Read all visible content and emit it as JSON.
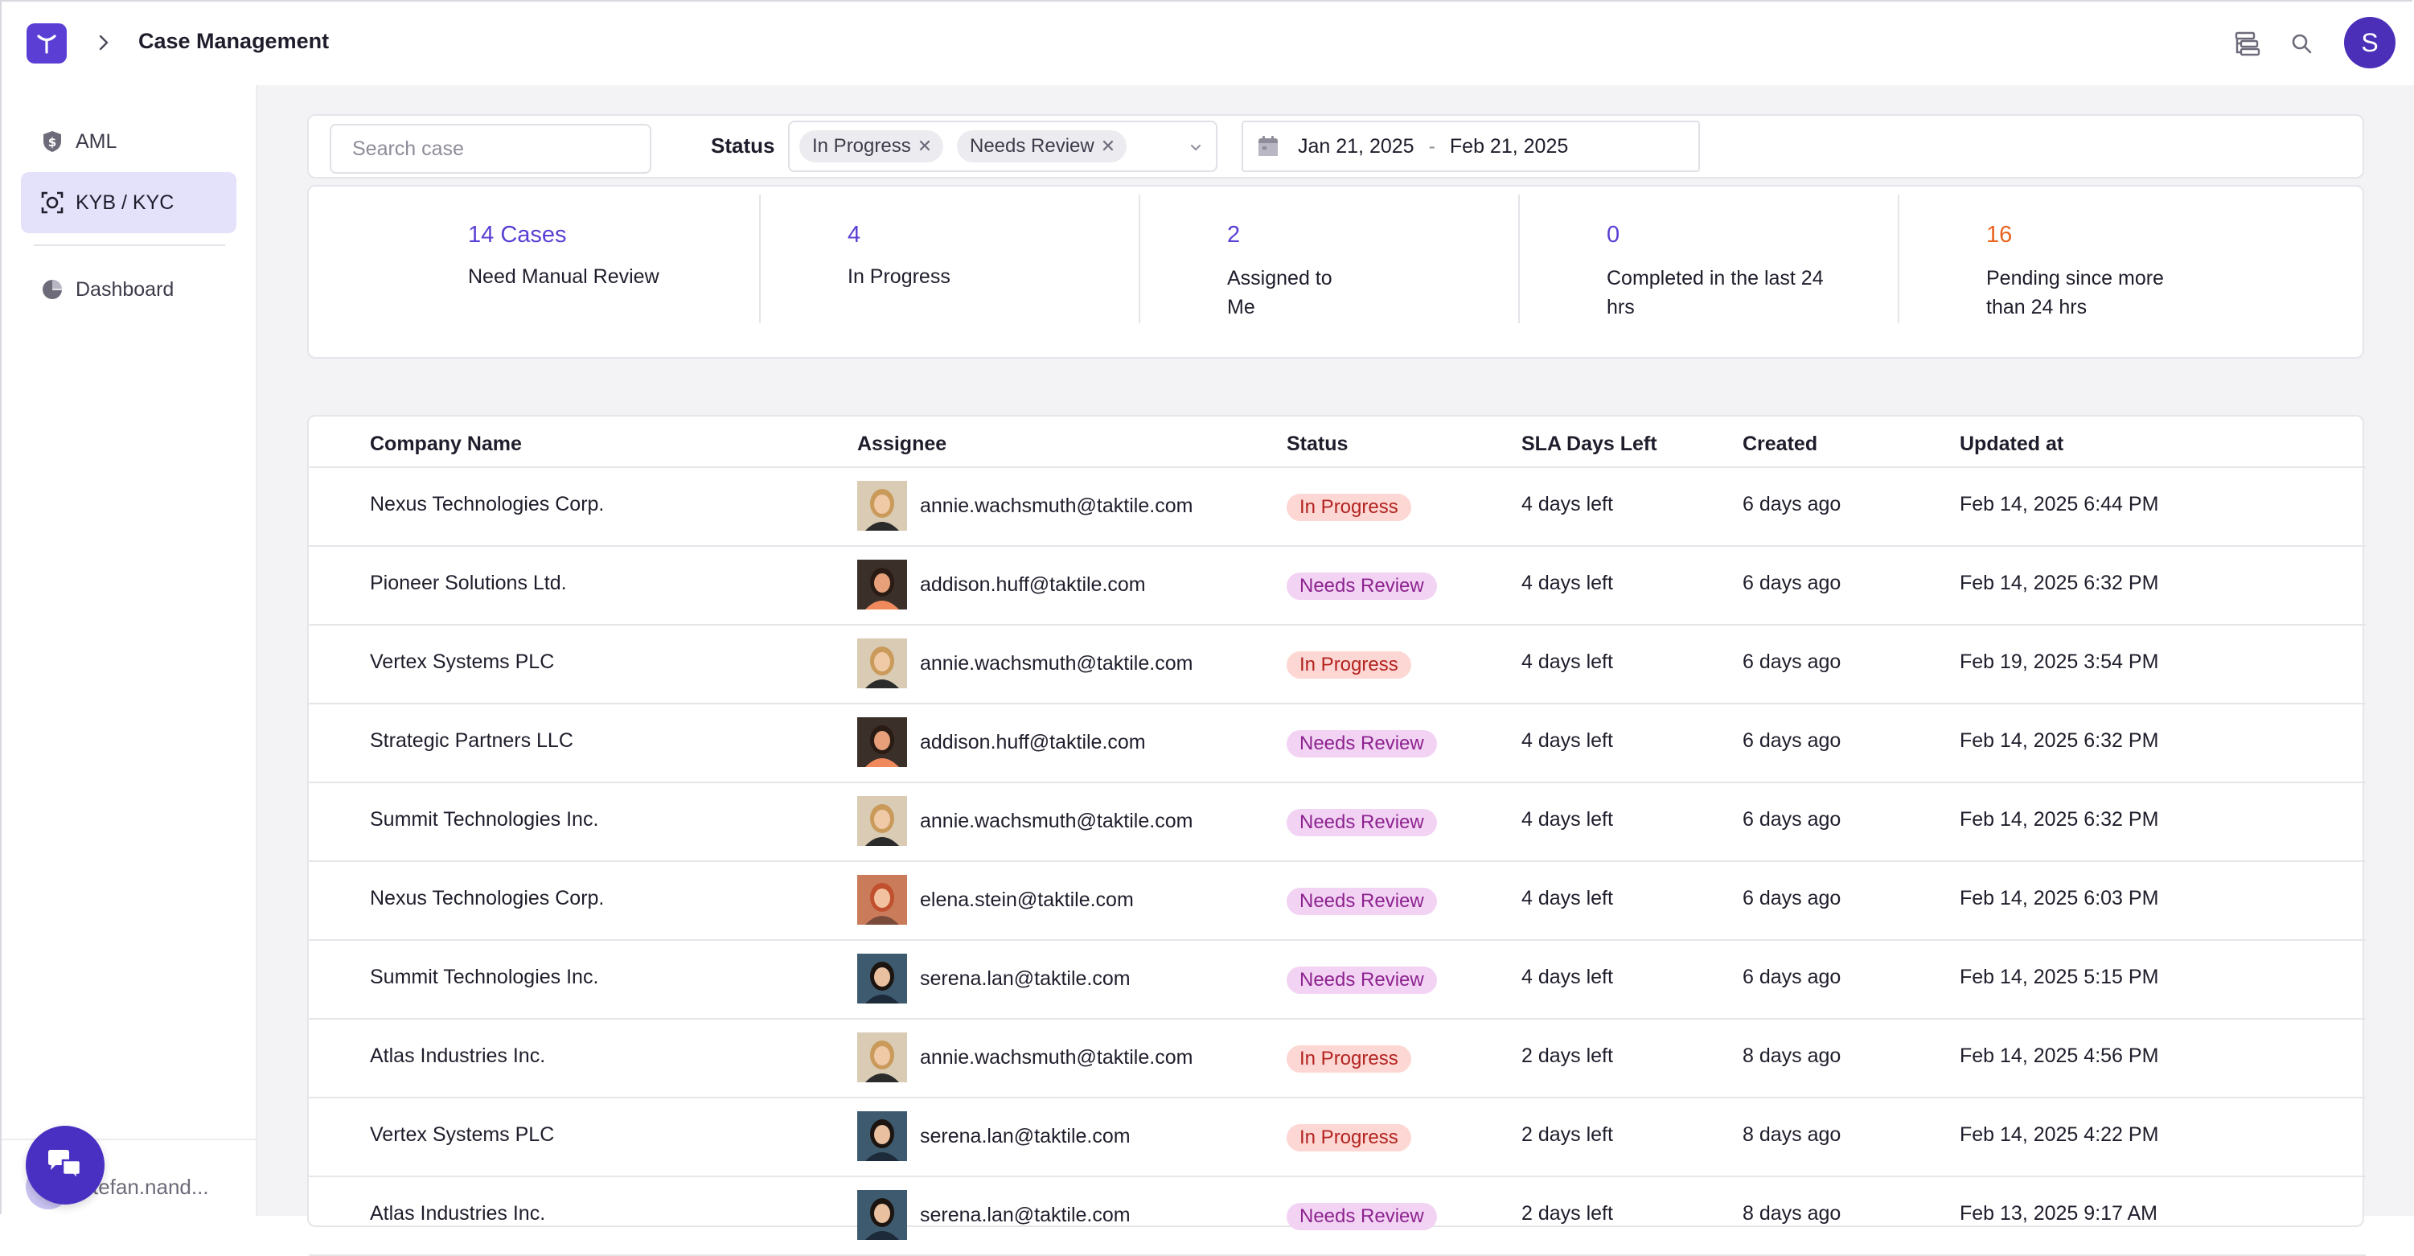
{
  "header": {
    "title": "Case Management",
    "user_initial": "S",
    "icons": [
      "logo-icon",
      "chevron-right-icon",
      "layout-icon",
      "search-icon"
    ]
  },
  "sidebar": {
    "items": [
      {
        "label": "AML",
        "icon": "shield-dollar-icon",
        "active": false
      },
      {
        "label": "KYB / KYC",
        "icon": "face-scan-icon",
        "active": true
      },
      {
        "label": "Dashboard",
        "icon": "pie-chart-icon",
        "active": false
      }
    ],
    "user": "stefan.nand..."
  },
  "filters": {
    "search_placeholder": "Search case",
    "status_label": "Status",
    "status_chips": [
      "In Progress",
      "Needs Review"
    ],
    "date_from": "Jan 21, 2025",
    "date_sep": "-",
    "date_to": "Feb 21, 2025"
  },
  "stats": [
    {
      "value": "14 Cases",
      "label": "Need Manual Review"
    },
    {
      "value": "4",
      "label": "In Progress"
    },
    {
      "value": "2",
      "label": "Assigned to Me"
    },
    {
      "value": "0",
      "label": "Completed in the last 24 hrs"
    },
    {
      "value": "16",
      "label": "Pending since more than 24 hrs"
    }
  ],
  "table": {
    "columns": [
      "Company Name",
      "Assignee",
      "Status",
      "SLA Days Left",
      "Created",
      "Updated at"
    ],
    "rows": [
      {
        "company": "Nexus Technologies Corp.",
        "assignee": "annie.wachsmuth@taktile.com",
        "face": "annie",
        "status": "In Progress",
        "sla": "4 days left",
        "created": "6 days ago",
        "updated": "Feb 14, 2025 6:44 PM"
      },
      {
        "company": "Pioneer Solutions Ltd.",
        "assignee": "addison.huff@taktile.com",
        "face": "addison",
        "status": "Needs Review",
        "sla": "4 days left",
        "created": "6 days ago",
        "updated": "Feb 14, 2025 6:32 PM"
      },
      {
        "company": "Vertex Systems PLC",
        "assignee": "annie.wachsmuth@taktile.com",
        "face": "annie",
        "status": "In Progress",
        "sla": "4 days left",
        "created": "6 days ago",
        "updated": "Feb 19, 2025 3:54 PM"
      },
      {
        "company": "Strategic Partners LLC",
        "assignee": "addison.huff@taktile.com",
        "face": "addison",
        "status": "Needs Review",
        "sla": "4 days left",
        "created": "6 days ago",
        "updated": "Feb 14, 2025 6:32 PM"
      },
      {
        "company": "Summit Technologies Inc.",
        "assignee": "annie.wachsmuth@taktile.com",
        "face": "annie",
        "status": "Needs Review",
        "sla": "4 days left",
        "created": "6 days ago",
        "updated": "Feb 14, 2025 6:32 PM"
      },
      {
        "company": "Nexus Technologies Corp.",
        "assignee": "elena.stein@taktile.com",
        "face": "elena",
        "status": "Needs Review",
        "sla": "4 days left",
        "created": "6 days ago",
        "updated": "Feb 14, 2025 6:03 PM"
      },
      {
        "company": "Summit Technologies Inc.",
        "assignee": "serena.lan@taktile.com",
        "face": "serena",
        "status": "Needs Review",
        "sla": "4 days left",
        "created": "6 days ago",
        "updated": "Feb 14, 2025 5:15 PM"
      },
      {
        "company": "Atlas Industries Inc.",
        "assignee": "annie.wachsmuth@taktile.com",
        "face": "annie",
        "status": "In Progress",
        "sla": "2 days left",
        "created": "8 days ago",
        "updated": "Feb 14, 2025 4:56 PM"
      },
      {
        "company": "Vertex Systems PLC",
        "assignee": "serena.lan@taktile.com",
        "face": "serena",
        "status": "In Progress",
        "sla": "2 days left",
        "created": "8 days ago",
        "updated": "Feb 14, 2025 4:22 PM"
      },
      {
        "company": "Atlas Industries Inc.",
        "assignee": "serena.lan@taktile.com",
        "face": "serena",
        "status": "Needs Review",
        "sla": "2 days left",
        "created": "8 days ago",
        "updated": "Feb 13, 2025 9:17 AM"
      }
    ]
  },
  "colors": {
    "accent": "#5b3fd4",
    "in_progress_bg": "#fcd7d4",
    "in_progress_text": "#b3231f",
    "needs_review_bg": "#f2d3f4",
    "needs_review_text": "#8d238f",
    "pending_orange": "#e8641f"
  }
}
